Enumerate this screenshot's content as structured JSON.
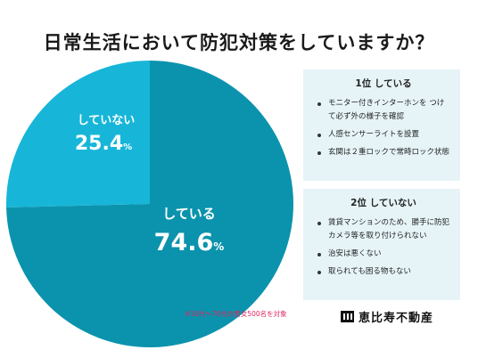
{
  "title": "日常生活において防犯対策をしていますか？",
  "colors": {
    "doing": "#0b93ad",
    "not_doing": "#17b6d8",
    "box_bg": "#e6f4f8",
    "note": "#e0245e"
  },
  "chart_data": {
    "type": "pie",
    "slices": [
      {
        "label": "している",
        "value": 74.6,
        "value_text": "74.6",
        "color": "#0b93ad"
      },
      {
        "label": "していない",
        "value": 25.4,
        "value_text": "25.4",
        "color": "#17b6d8"
      }
    ],
    "unit": "%",
    "start": "top, not_doing clockwise first"
  },
  "box1": {
    "title": "1位 している",
    "items": [
      "モニター付きインターホンを つけて必ず外の様子を確認",
      "人感センサーライトを設置",
      "玄関は２重ロックで常時ロック状態"
    ]
  },
  "box2": {
    "title": "2位 していない",
    "items": [
      "賃貸マンションのため、勝手に防犯カメラ等を取り付けられない",
      "治安は悪くない",
      "取られても困る物もない"
    ]
  },
  "note": "※10代〜70代の男女500名を対象",
  "logo": {
    "text": "恵比寿不動産",
    "icon": "building-logo-icon"
  }
}
